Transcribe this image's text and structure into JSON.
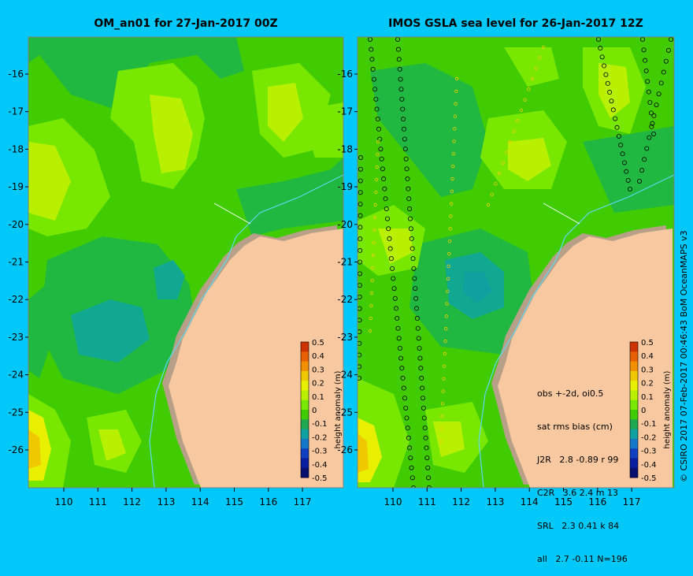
{
  "left_panel": {
    "title": "OM_an01 for 27-Jan-2017 00Z"
  },
  "right_panel": {
    "title": "IMOS GSLA sea level  for 26-Jan-2017 12Z",
    "stats": {
      "header1": "obs +-2d, oi0.5",
      "header2": "sat rms bias (cm)",
      "rows": [
        "J2R   2.8 -0.89 r 99",
        "C2R   3.6 2.4 m 13",
        "SRL   2.3 0.41 k 84",
        "all   2.7 -0.11 N=196"
      ]
    }
  },
  "axes": {
    "x_ticks": [
      "110",
      "111",
      "112",
      "113",
      "114",
      "115",
      "116",
      "117"
    ],
    "y_ticks": [
      "-16",
      "-17",
      "-18",
      "-19",
      "-20",
      "-21",
      "-22",
      "-23",
      "-24",
      "-25",
      "-26"
    ]
  },
  "colorbar": {
    "label": "height anomaly (m)",
    "ticks": [
      "0.5",
      "0.4",
      "0.3",
      "0.2",
      "0.1",
      "0",
      "-0.1",
      "-0.2",
      "-0.3",
      "-0.4",
      "-0.5"
    ],
    "colors": [
      "#cc3300",
      "#e66000",
      "#f09000",
      "#f0c800",
      "#e8f000",
      "#b8f000",
      "#78e800",
      "#40cc00",
      "#20a850",
      "#10a0a0",
      "#1478c8",
      "#1040c0",
      "#0820a0",
      "#081070"
    ]
  },
  "credit": "© CSIRO 2017  07-Feb-2017 00:46:43 BoM OceanMAPS v3",
  "colors": {
    "background": "#00c8f8",
    "land": "#f8c8a0",
    "coast_shelf": "#b8a088",
    "base_green": "#40cc00"
  }
}
